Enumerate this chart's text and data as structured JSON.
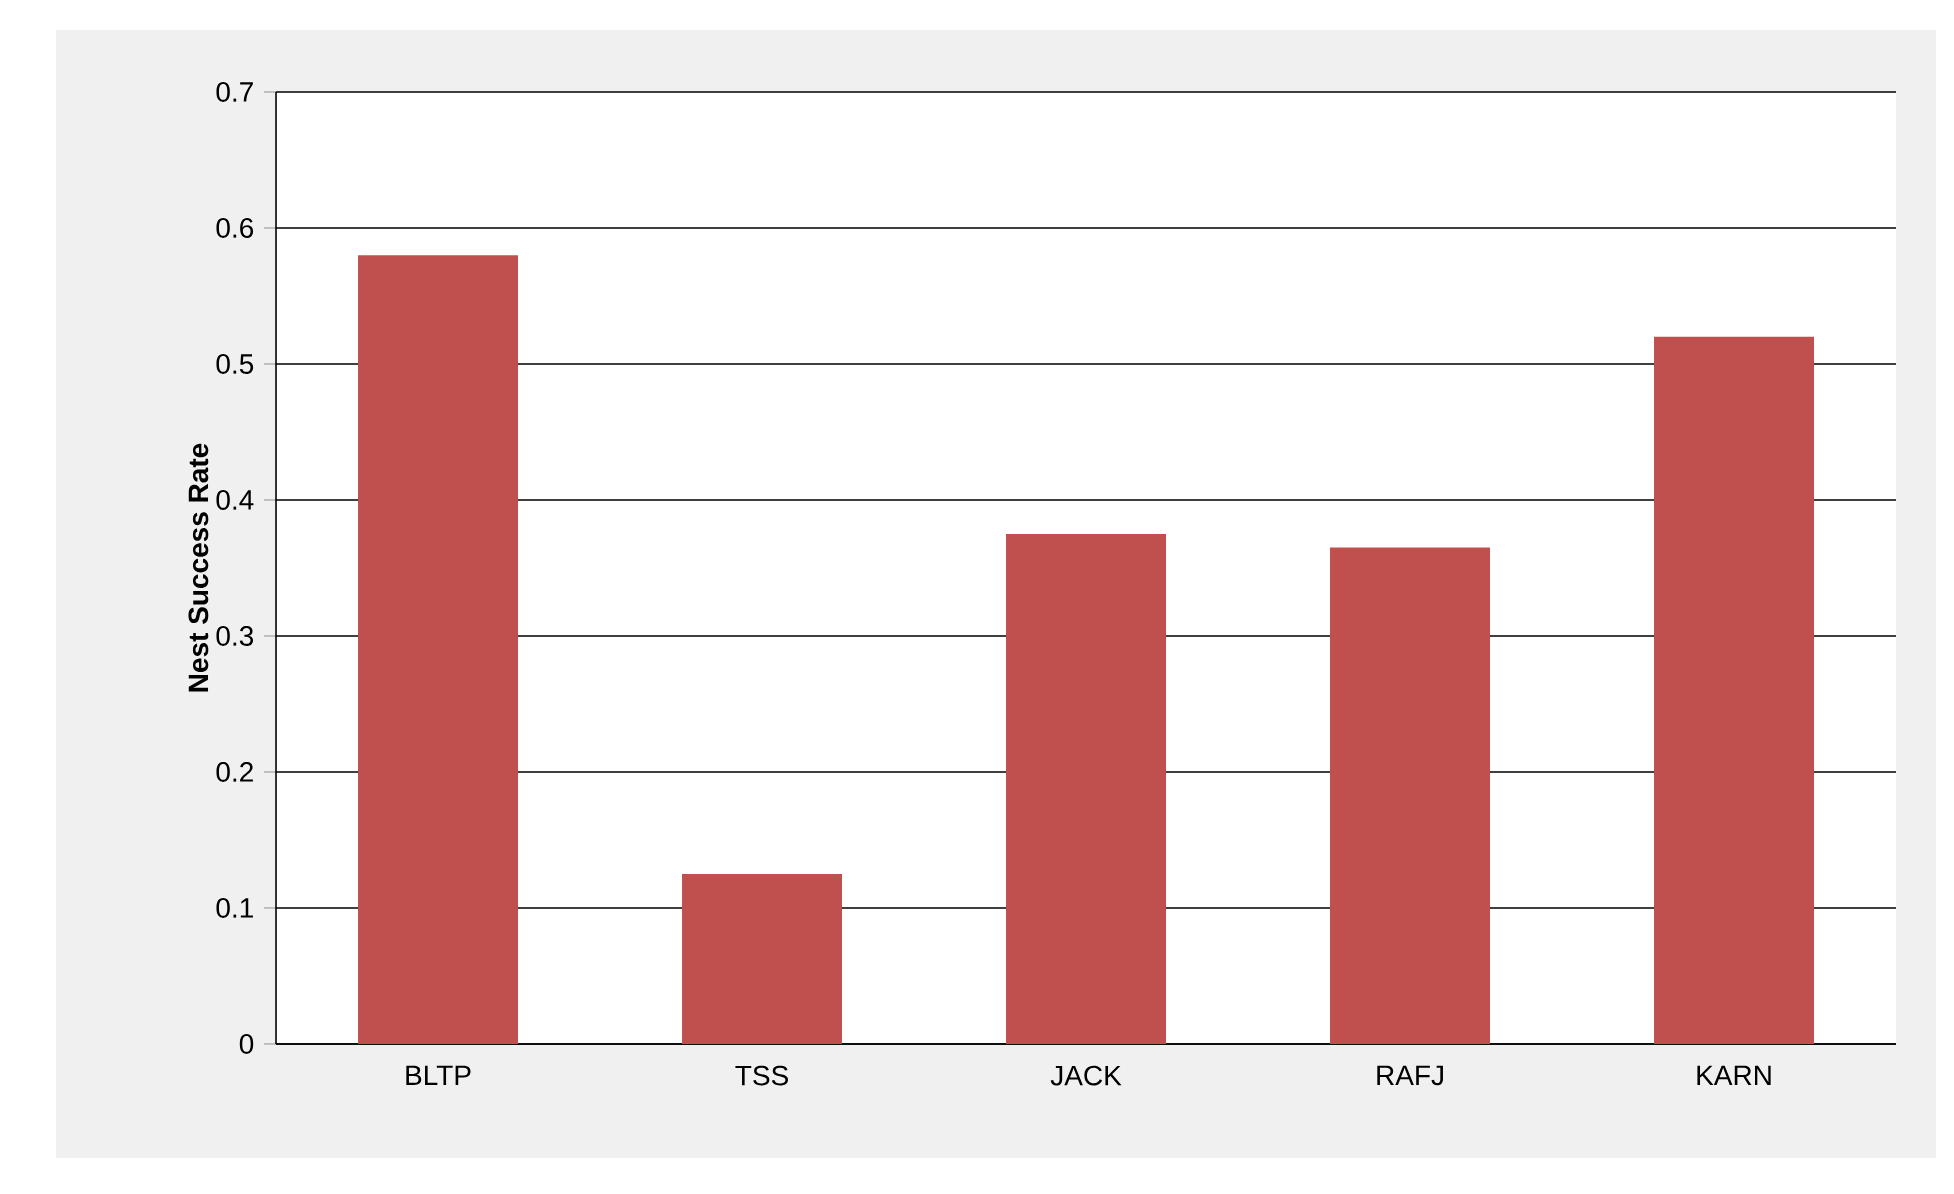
{
  "chart_data": {
    "type": "bar",
    "ylabel": "Nest Success Rate",
    "categories": [
      "BLTP",
      "TSS",
      "JACK",
      "RAFJ",
      "KARN"
    ],
    "values": [
      0.58,
      0.125,
      0.375,
      0.365,
      0.52
    ],
    "color": "#c0504d",
    "ylim": [
      0,
      0.7
    ],
    "yticks": [
      0,
      0.1,
      0.2,
      0.3,
      0.4,
      0.5,
      0.6,
      0.7
    ],
    "grid": "y"
  }
}
